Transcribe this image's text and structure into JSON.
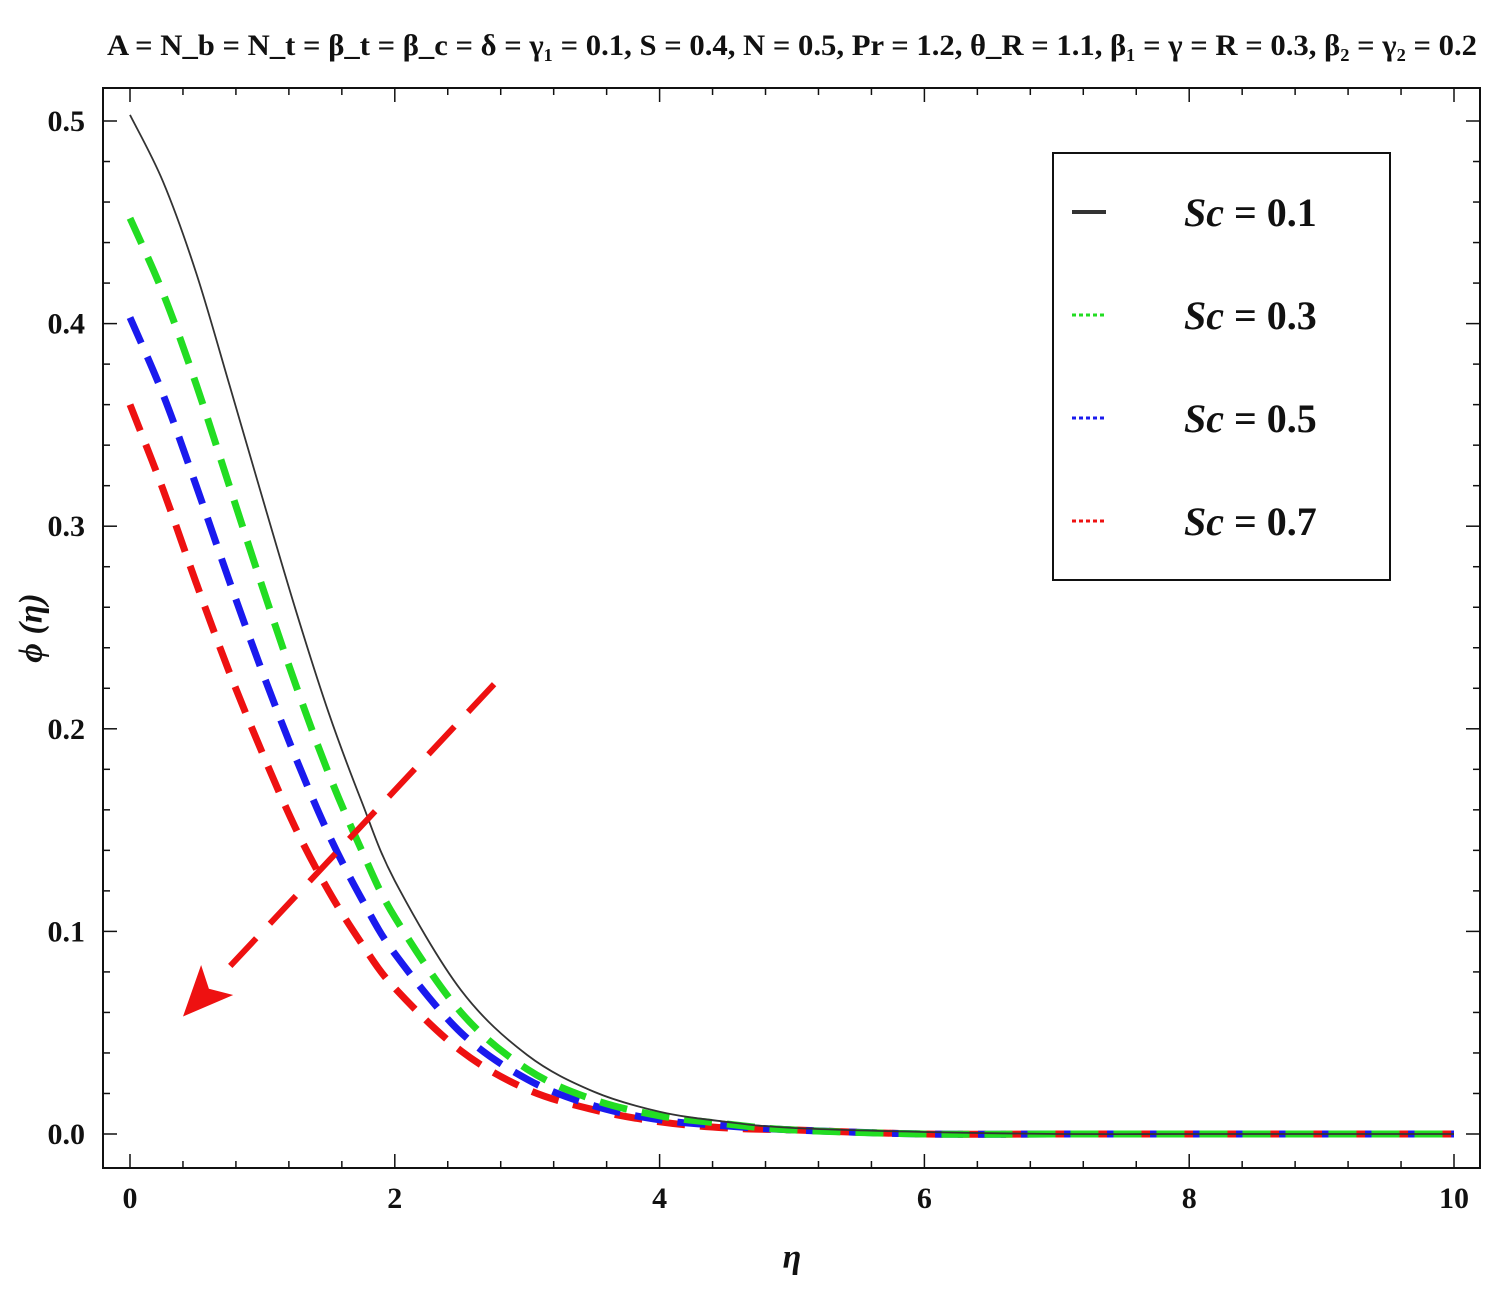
{
  "chart_data": {
    "type": "line",
    "title": "A = N_b = N_t = β_t = β_c = δ = γ₁ = 0.1, S = 0.4, N = 0.5, Pr = 1.2, θ_R = 1.1, β₁ = γ = R = 0.3, β₂ = γ₂ = 0.2",
    "xlabel": "η",
    "ylabel": "ϕ (η)",
    "xlim": [
      0,
      10
    ],
    "ylim": [
      -0.016,
      0.52
    ],
    "x_ticks": [
      "0",
      "2",
      "4",
      "6",
      "8",
      "10"
    ],
    "y_ticks": [
      "0.0",
      "0.1",
      "0.2",
      "0.3",
      "0.4",
      "0.5"
    ],
    "grid": false,
    "legend_position": "top-right",
    "series": [
      {
        "name": "Sc = 0.1",
        "legend_prefix": "Sc",
        "legend_value": "= 0.1",
        "color": "#333333",
        "style": "solid",
        "x": [
          0,
          0.25,
          0.5,
          0.75,
          1,
          1.25,
          1.5,
          1.75,
          2,
          2.5,
          3,
          3.5,
          4,
          4.5,
          5,
          6,
          7,
          8,
          9,
          10
        ],
        "values": [
          0.503,
          0.47,
          0.425,
          0.37,
          0.314,
          0.259,
          0.208,
          0.164,
          0.125,
          0.071,
          0.039,
          0.021,
          0.011,
          0.006,
          0.003,
          0.001,
          0.0,
          0.0,
          0.0,
          0.0
        ]
      },
      {
        "name": "Sc = 0.3",
        "legend_prefix": "Sc",
        "legend_value": "= 0.3",
        "color": "#22dd22",
        "style": "dashed",
        "x": [
          0,
          0.25,
          0.5,
          0.75,
          1,
          1.25,
          1.5,
          1.75,
          2,
          2.5,
          3,
          3.5,
          4,
          4.5,
          5,
          6,
          7,
          8,
          9,
          10
        ],
        "values": [
          0.452,
          0.415,
          0.37,
          0.32,
          0.27,
          0.222,
          0.178,
          0.14,
          0.107,
          0.06,
          0.032,
          0.017,
          0.009,
          0.005,
          0.002,
          0.0,
          0.0,
          0.0,
          0.0,
          0.0
        ]
      },
      {
        "name": "Sc = 0.5",
        "legend_prefix": "Sc",
        "legend_value": "= 0.5",
        "color": "#1a1aee",
        "style": "dashed",
        "x": [
          0,
          0.25,
          0.5,
          0.75,
          1,
          1.25,
          1.5,
          1.75,
          2,
          2.5,
          3,
          3.5,
          4,
          4.5,
          5,
          6,
          7,
          8,
          9,
          10
        ],
        "values": [
          0.403,
          0.365,
          0.32,
          0.273,
          0.228,
          0.186,
          0.148,
          0.116,
          0.089,
          0.05,
          0.027,
          0.014,
          0.007,
          0.004,
          0.002,
          0.0,
          0.0,
          0.0,
          0.0,
          0.0
        ]
      },
      {
        "name": "Sc = 0.7",
        "legend_prefix": "Sc",
        "legend_value": "= 0.7",
        "color": "#ee1111",
        "style": "dashed",
        "x": [
          0,
          0.25,
          0.5,
          0.75,
          1,
          1.25,
          1.5,
          1.75,
          2,
          2.5,
          3,
          3.5,
          4,
          4.5,
          5,
          6,
          7,
          8,
          9,
          10
        ],
        "values": [
          0.36,
          0.318,
          0.272,
          0.228,
          0.188,
          0.151,
          0.12,
          0.094,
          0.072,
          0.041,
          0.022,
          0.012,
          0.006,
          0.003,
          0.002,
          0.0,
          0.0,
          0.0,
          0.0,
          0.0
        ]
      }
    ],
    "annotations": [
      {
        "type": "arrow",
        "style": "dashed",
        "color": "#ee1111",
        "from": [
          2.75,
          0.222
        ],
        "to": [
          0.4,
          0.058
        ]
      }
    ]
  }
}
